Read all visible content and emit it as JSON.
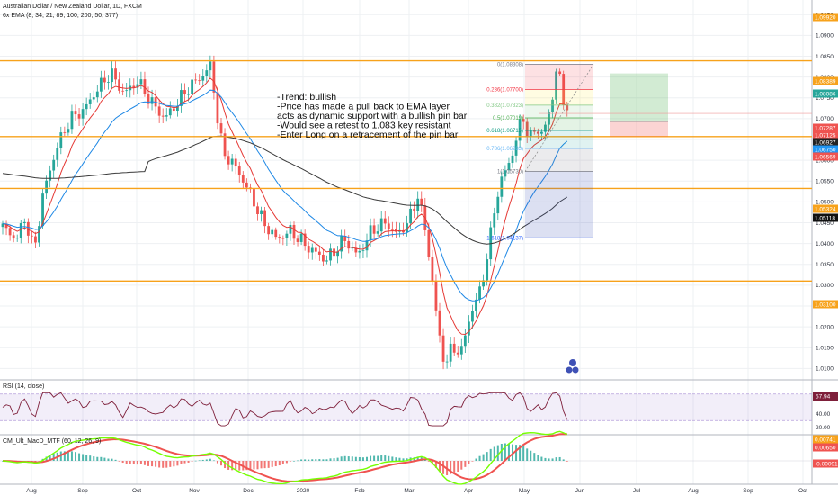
{
  "header": {
    "symbol": "Australian Dollar / New Zealand Dollar, 1D, FXCM",
    "ema_label": "6x EMA (8, 34, 21, 89, 100, 200, 50, 377)"
  },
  "chart_data": [
    {
      "type": "candlestick",
      "title": "Australian Dollar / New Zealand Dollar, 1D, FXCM",
      "x_ticks": [
        "Aug",
        "Sep",
        "Oct",
        "Nov",
        "Dec",
        "2020",
        "Feb",
        "Mar",
        "Apr",
        "May",
        "Jun",
        "Jul",
        "Aug",
        "Sep",
        "Oct"
      ],
      "y_ticks": [
        1.01,
        1.015,
        1.02,
        1.025,
        1.03,
        1.035,
        1.04,
        1.045,
        1.05,
        1.055,
        1.06,
        1.065,
        1.07,
        1.075,
        1.08,
        1.085,
        1.09,
        1.095
      ],
      "ylim": [
        1.0075,
        1.0985
      ],
      "grid": true,
      "horizontal_levels": [
        1.0992,
        1.08389,
        1.06569,
        1.05324,
        1.031
      ],
      "price_tags": [
        {
          "label": "1.09920",
          "color": "#f7a21b"
        },
        {
          "label": "1.08389",
          "color": "#f7a21b"
        },
        {
          "label": "1.08086",
          "color": "#26a69a"
        },
        {
          "label": "1.07287",
          "color": "#ef5350"
        },
        {
          "label": "1.07125",
          "color": "#ef5350"
        },
        {
          "label": "1.06927",
          "color": "#222222"
        },
        {
          "label": "1.06750",
          "color": "#2196f3"
        },
        {
          "label": "1.06569",
          "color": "#ef5350"
        },
        {
          "label": "1.05324",
          "color": "#f7a21b"
        },
        {
          "label": "1.05118",
          "color": "#111111"
        },
        {
          "label": "1.03100",
          "color": "#f7a21b"
        }
      ],
      "fibonacci": [
        {
          "label": "0(1.08308)",
          "value": 1.08308,
          "color": "#787b86"
        },
        {
          "label": "0.236(1.07700)",
          "value": 1.077,
          "color": "#f23645"
        },
        {
          "label": "0.382(1.07323)",
          "value": 1.07323,
          "color": "#81c784"
        },
        {
          "label": "0.5(1.07019)",
          "value": 1.07019,
          "color": "#4caf50"
        },
        {
          "label": "0.618(1.06715)",
          "value": 1.06715,
          "color": "#089981"
        },
        {
          "label": "0.786(1.06283)",
          "value": 1.06283,
          "color": "#64b5f6"
        },
        {
          "label": "1(1.05730)",
          "value": 1.0573,
          "color": "#787b86"
        },
        {
          "label": "1.618(1.04137)",
          "value": 1.04137,
          "color": "#2962ff"
        }
      ],
      "annotation": [
        "-Trend: bullish",
        "-Price has made a pull back to EMA layer",
        "acts as dynamic support with a bullish pin bar",
        "-Would see a retest to 1.083 key resistant",
        "-Enter Long on a retracement of the pin bar"
      ]
    },
    {
      "type": "line",
      "title": "RSI (14, close)",
      "y_ticks": [
        20.0,
        40.0
      ],
      "value_tag": "57.94"
    },
    {
      "type": "line",
      "title": "CM_Ult_MacD_MTF (60, 12, 26, 9)",
      "value_tags": [
        "0.00741",
        "0.00650",
        "-0.00091"
      ]
    }
  ]
}
